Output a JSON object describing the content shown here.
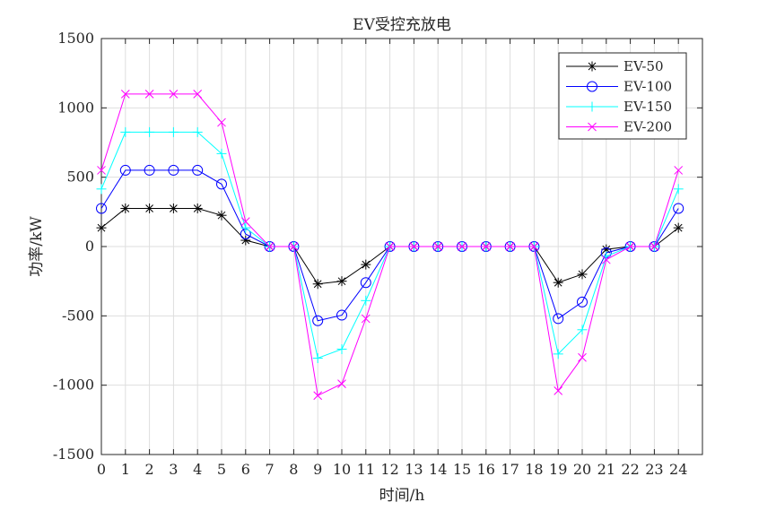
{
  "chart_data": {
    "type": "line",
    "title": "EV受控充放电",
    "xlabel": "时间/h",
    "ylabel": "功率/kW",
    "xlim": [
      0,
      25
    ],
    "ylim": [
      -1500,
      1500
    ],
    "xticks": [
      0,
      1,
      2,
      3,
      4,
      5,
      6,
      7,
      8,
      9,
      10,
      11,
      12,
      13,
      14,
      15,
      16,
      17,
      18,
      19,
      20,
      21,
      22,
      23,
      24
    ],
    "yticks": [
      -1500,
      -1000,
      -500,
      0,
      500,
      1000,
      1500
    ],
    "grid": true,
    "legend_position": "top-right",
    "x": [
      0,
      1,
      2,
      3,
      4,
      5,
      6,
      7,
      8,
      9,
      10,
      11,
      12,
      13,
      14,
      15,
      16,
      17,
      18,
      19,
      20,
      21,
      22,
      23,
      24
    ],
    "series": [
      {
        "name": "EV-50",
        "color": "#000000",
        "marker": "asterisk",
        "values": [
          135,
          275,
          275,
          275,
          275,
          225,
          45,
          0,
          0,
          -270,
          -250,
          -130,
          0,
          0,
          0,
          0,
          0,
          0,
          0,
          -260,
          -200,
          -20,
          0,
          0,
          135
        ]
      },
      {
        "name": "EV-100",
        "color": "#0000ff",
        "marker": "circle",
        "values": [
          275,
          550,
          550,
          550,
          550,
          450,
          90,
          0,
          0,
          -535,
          -495,
          -260,
          0,
          0,
          0,
          0,
          0,
          0,
          0,
          -520,
          -400,
          -45,
          0,
          0,
          275
        ]
      },
      {
        "name": "EV-150",
        "color": "#00ffff",
        "marker": "plus",
        "values": [
          415,
          825,
          825,
          825,
          825,
          670,
          135,
          0,
          0,
          -805,
          -740,
          -390,
          0,
          0,
          0,
          0,
          0,
          0,
          0,
          -775,
          -600,
          -70,
          0,
          0,
          415
        ]
      },
      {
        "name": "EV-200",
        "color": "#ff00ff",
        "marker": "x",
        "values": [
          550,
          1100,
          1100,
          1100,
          1100,
          895,
          180,
          0,
          0,
          -1075,
          -990,
          -520,
          0,
          0,
          0,
          0,
          0,
          0,
          0,
          -1040,
          -800,
          -95,
          0,
          0,
          550
        ]
      }
    ]
  }
}
